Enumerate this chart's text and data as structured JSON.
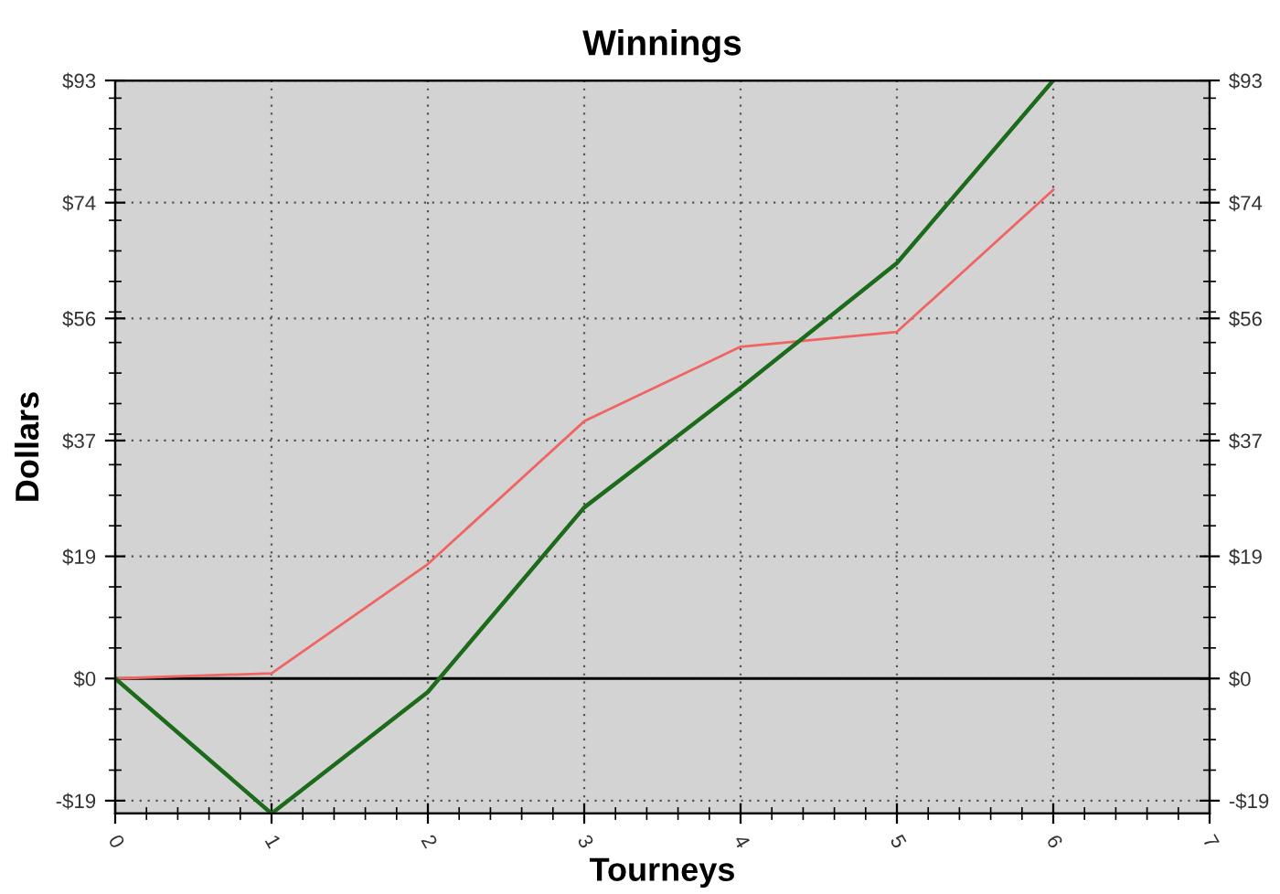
{
  "chart_data": {
    "type": "line",
    "title": "Winnings",
    "xlabel": "Tourneys",
    "ylabel": "Dollars",
    "x": [
      0,
      1,
      2,
      3,
      4,
      5,
      6
    ],
    "series": [
      {
        "color": "#1b6b1b",
        "values": [
          0,
          -21,
          -2.1,
          26.6,
          45.2,
          64.6,
          93
        ]
      },
      {
        "color": "#f06464",
        "values": [
          0,
          0.8,
          17.8,
          40,
          51.6,
          53.9,
          76
        ]
      }
    ],
    "xlim": [
      0,
      7
    ],
    "xticks": [
      0,
      1,
      2,
      3,
      4,
      5,
      6,
      7
    ],
    "ylim": [
      -21,
      93
    ],
    "yticks": [
      {
        "value": -19,
        "label": "-$19"
      },
      {
        "value": 0,
        "label": "$0"
      },
      {
        "value": 19,
        "label": "$19"
      },
      {
        "value": 37,
        "label": "$37"
      },
      {
        "value": 56,
        "label": "$56"
      },
      {
        "value": 74,
        "label": "$74"
      },
      {
        "value": 93,
        "label": "$93"
      }
    ],
    "y2lim": [
      -21,
      93
    ],
    "y2ticks": [
      {
        "value": -19,
        "label": "-$19"
      },
      {
        "value": 0,
        "label": "$0"
      },
      {
        "value": 19,
        "label": "$19"
      },
      {
        "value": 37,
        "label": "$37"
      },
      {
        "value": 56,
        "label": "$56"
      },
      {
        "value": 74,
        "label": "$74"
      },
      {
        "value": 93,
        "label": "$93"
      }
    ],
    "ref_lines": [
      {
        "axis": "y",
        "value": 0,
        "color": "#000000",
        "line_style": "solid"
      }
    ],
    "grid": true,
    "legend": false,
    "marker": "none",
    "line_style": "solid"
  }
}
